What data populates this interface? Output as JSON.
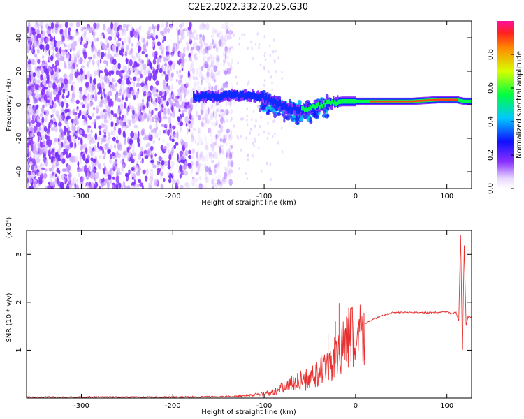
{
  "title": "C2E2.2022.332.20.25.G30",
  "colors": {
    "snr_line": "#e83030",
    "ridge_hot": "#ff2020",
    "noise": "#7a2ee6",
    "frame": "#000000"
  },
  "chart_data": [
    {
      "type": "heatmap",
      "title": "C2E2.2022.332.20.25.G30",
      "xlabel": "Height of straight line (km)",
      "ylabel": "Frequency (Hz)",
      "xlim": [
        -360,
        127
      ],
      "ylim": [
        -50,
        50
      ],
      "xticks": [
        -300,
        -200,
        -100,
        0,
        100
      ],
      "yticks": [
        -40,
        -20,
        0,
        20,
        40
      ],
      "colorbar": {
        "label": "Normalized spectral amplitude",
        "range": [
          0.0,
          1.0
        ],
        "ticks": [
          "0.0",
          "0.2",
          "0.4",
          "0.6",
          "0.8"
        ],
        "tick_values": [
          0.0,
          0.2,
          0.4,
          0.6,
          0.8
        ]
      },
      "noise_region": {
        "x_from": -360,
        "x_to": -135,
        "freq_from": -50,
        "freq_to": 48
      },
      "signal_ridge": [
        {
          "x": -178,
          "freq": 5,
          "amp": 0.3
        },
        {
          "x": -150,
          "freq": 5,
          "amp": 0.35
        },
        {
          "x": -130,
          "freq": 6,
          "amp": 0.45
        },
        {
          "x": -105,
          "freq": 5,
          "amp": 0.5
        },
        {
          "x": -90,
          "freq": 2,
          "amp": 0.45
        },
        {
          "x": -75,
          "freq": -2,
          "amp": 0.45
        },
        {
          "x": -60,
          "freq": -3,
          "amp": 0.5
        },
        {
          "x": -45,
          "freq": -1,
          "amp": 0.5
        },
        {
          "x": -30,
          "freq": 1,
          "amp": 0.6
        },
        {
          "x": -15,
          "freq": 2,
          "amp": 0.7
        },
        {
          "x": 0,
          "freq": 2,
          "amp": 0.8
        },
        {
          "x": 30,
          "freq": 2,
          "amp": 0.9
        },
        {
          "x": 60,
          "freq": 2,
          "amp": 0.9
        },
        {
          "x": 90,
          "freq": 3,
          "amp": 0.9
        },
        {
          "x": 110,
          "freq": 3,
          "amp": 0.85
        },
        {
          "x": 118,
          "freq": 2,
          "amp": 0.6
        },
        {
          "x": 127,
          "freq": 2,
          "amp": 0.7
        }
      ]
    },
    {
      "type": "line",
      "xlabel": "Height of straight line (km)",
      "ylabel": "SNR (10 * v/v)",
      "y_multiplier": "(x10⁴)",
      "xlim": [
        -360,
        127
      ],
      "ylim": [
        0,
        3.5
      ],
      "xticks": [
        -300,
        -200,
        -100,
        0,
        100
      ],
      "yticks": [
        1,
        2,
        3
      ],
      "series": [
        {
          "x": [
            -360,
            -300,
            -200,
            -150,
            -120,
            -110,
            -100,
            -90,
            -80,
            -70,
            -60,
            -50,
            -40,
            -30,
            -25,
            -20,
            -15,
            -10,
            0,
            10,
            20,
            30,
            40,
            60,
            80,
            100,
            105,
            110,
            113,
            115,
            117,
            119,
            121,
            123,
            127
          ],
          "y": [
            0.02,
            0.02,
            0.02,
            0.03,
            0.04,
            0.06,
            0.08,
            0.12,
            0.2,
            0.28,
            0.35,
            0.5,
            0.6,
            0.75,
            0.85,
            1.0,
            1.2,
            1.35,
            1.45,
            1.55,
            1.65,
            1.72,
            1.78,
            1.79,
            1.78,
            1.8,
            1.75,
            1.8,
            1.6,
            3.4,
            1.0,
            3.2,
            1.5,
            1.7,
            1.68
          ],
          "peaks": [
            {
              "x": -40,
              "y": 0.95
            },
            {
              "x": -30,
              "y": 1.35
            },
            {
              "x": -22,
              "y": 1.6
            },
            {
              "x": -18,
              "y": 1.98
            },
            {
              "x": -10,
              "y": 1.7
            },
            {
              "x": 10,
              "y": 1.78
            }
          ]
        }
      ]
    }
  ]
}
